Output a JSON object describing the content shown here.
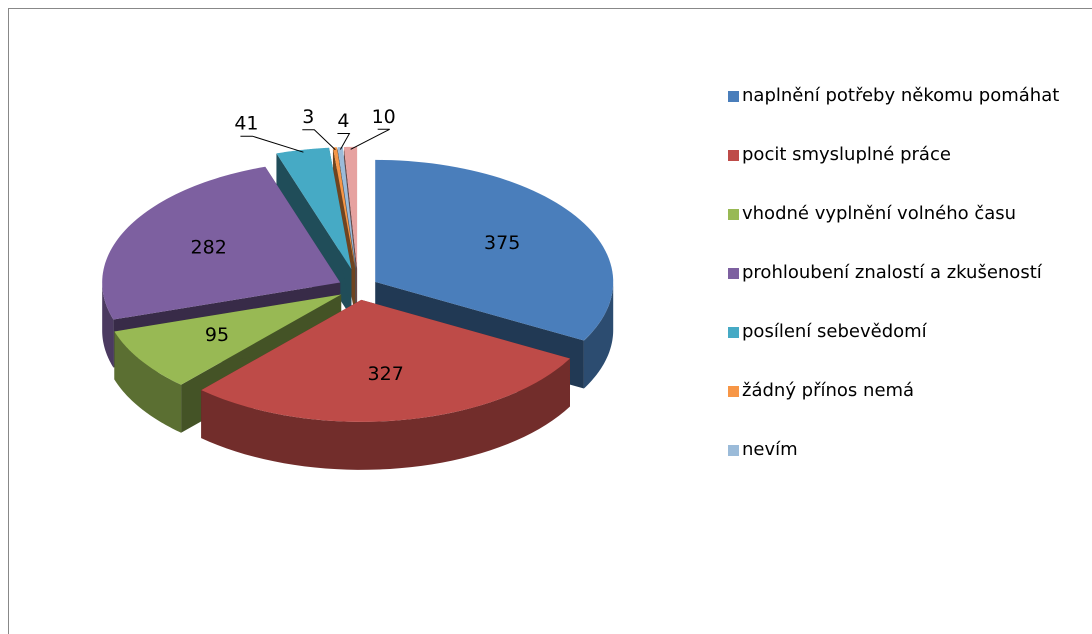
{
  "chart_data": {
    "type": "pie3d",
    "categories": [
      "naplnění potřeby někomu pomáhat",
      "pocit smysluplné práce",
      "vhodné vyplnění volného času",
      "prohloubení znalostí a zkušeností",
      "posílení sebevědomí",
      "žádný přínos nemá",
      "nevím",
      null
    ],
    "values": [
      375,
      327,
      95,
      282,
      41,
      3,
      4,
      10
    ],
    "colors": [
      "#4a7ebb",
      "#be4b48",
      "#98b954",
      "#7d60a0",
      "#46aac5",
      "#f79646",
      "#9bbbd9",
      "#e6a2a0"
    ],
    "legend": "right"
  }
}
